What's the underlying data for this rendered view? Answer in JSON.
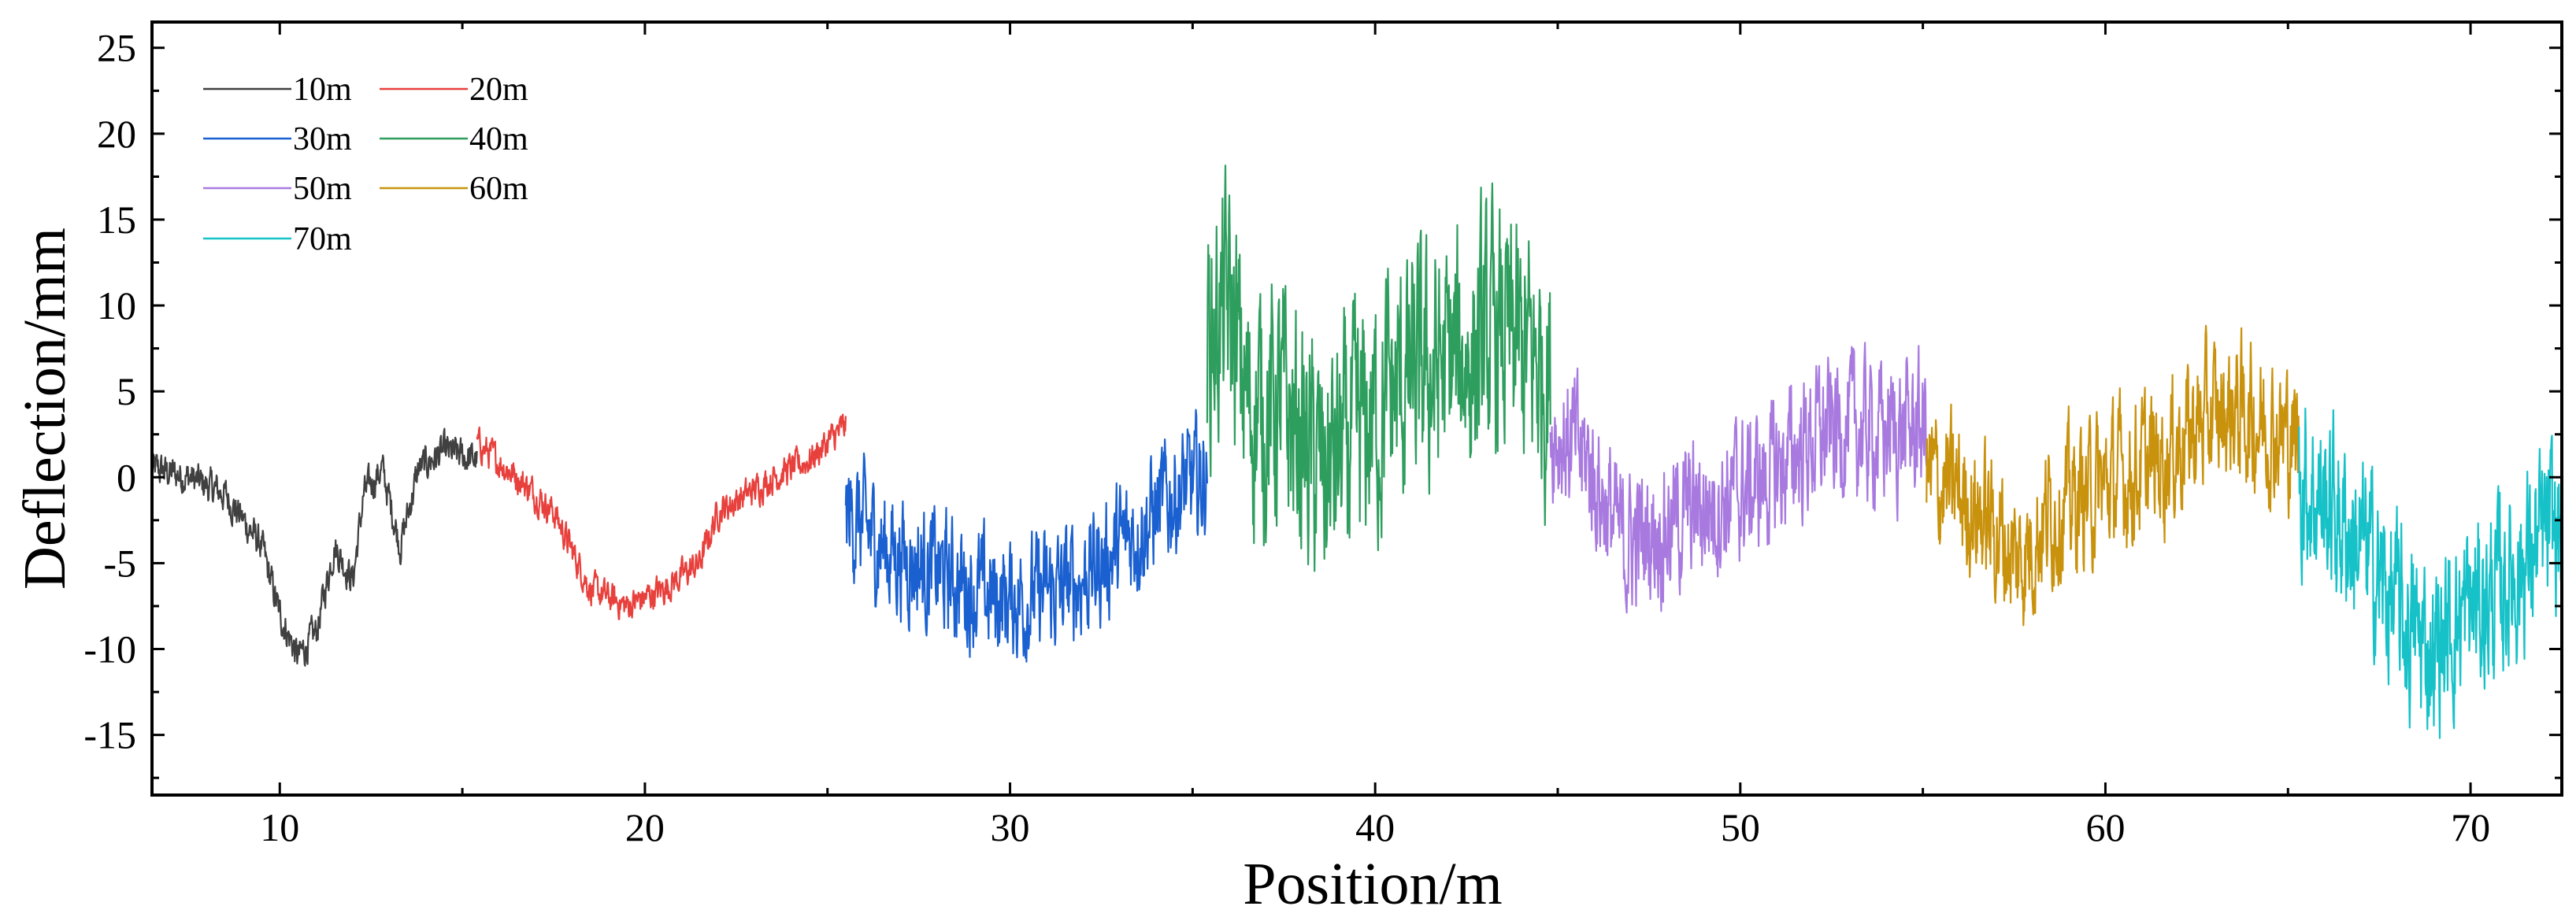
{
  "chart_data": {
    "type": "line",
    "xlabel": "Position/m",
    "ylabel": "Deflection/mm",
    "xlim": [
      6.5,
      72.5
    ],
    "ylim": [
      -18.5,
      26.5
    ],
    "x_ticks_major": [
      10,
      20,
      30,
      40,
      50,
      60,
      70
    ],
    "y_ticks_major": [
      -15,
      -10,
      -5,
      0,
      5,
      10,
      15,
      20,
      25
    ],
    "y_tick_labels": [
      "-15",
      "-10",
      "-5",
      "0",
      "5",
      "10",
      "15",
      "20",
      "25"
    ],
    "x_tick_labels": [
      "10",
      "20",
      "30",
      "40",
      "50",
      "60",
      "70"
    ],
    "grid": false,
    "legend_position": "top-left",
    "series": [
      {
        "name": "10m",
        "color": "#404040",
        "x_range": [
          6.5,
          15.4
        ],
        "noise": 1.0,
        "trend": [
          [
            6.5,
            0.5
          ],
          [
            7.5,
            0
          ],
          [
            8.5,
            -1
          ],
          [
            9.5,
            -4
          ],
          [
            10.0,
            -8
          ],
          [
            10.5,
            -10.5
          ],
          [
            11.0,
            -9
          ],
          [
            11.5,
            -4
          ],
          [
            12.0,
            -6
          ],
          [
            12.3,
            -1
          ],
          [
            12.8,
            0.5
          ],
          [
            13.3,
            -4
          ],
          [
            13.8,
            0.5
          ],
          [
            14.5,
            1.5
          ],
          [
            15.4,
            1
          ]
        ]
      },
      {
        "name": "20m",
        "color": "#e8403c",
        "x_range": [
          15.4,
          25.5
        ],
        "noise": 0.9,
        "trend": [
          [
            15.4,
            2
          ],
          [
            16.5,
            0
          ],
          [
            17.5,
            -2
          ],
          [
            18.5,
            -6.5
          ],
          [
            19.5,
            -7.5
          ],
          [
            20.5,
            -6.5
          ],
          [
            21.5,
            -5
          ],
          [
            22.0,
            -2
          ],
          [
            22.8,
            -1
          ],
          [
            23.5,
            0
          ],
          [
            24.5,
            1
          ],
          [
            25.5,
            3
          ]
        ]
      },
      {
        "name": "30m",
        "color": "#1a60d0",
        "x_range": [
          25.5,
          35.4
        ],
        "noise": 3.4,
        "trend": [
          [
            25.5,
            -2
          ],
          [
            26.5,
            -4
          ],
          [
            27.5,
            -5
          ],
          [
            28.5,
            -6
          ],
          [
            29.5,
            -7
          ],
          [
            30.5,
            -7
          ],
          [
            31.5,
            -6.5
          ],
          [
            32.5,
            -5
          ],
          [
            33.5,
            -3
          ],
          [
            34.5,
            -1
          ],
          [
            35.4,
            0
          ]
        ]
      },
      {
        "name": "40m",
        "color": "#2e9e5e",
        "x_range": [
          35.4,
          44.8
        ],
        "noise": 7.0,
        "trend": [
          [
            35.4,
            8
          ],
          [
            36.0,
            10
          ],
          [
            36.5,
            4
          ],
          [
            37.5,
            4
          ],
          [
            38.5,
            0
          ],
          [
            39.5,
            2
          ],
          [
            40.5,
            5
          ],
          [
            41.5,
            6
          ],
          [
            42.5,
            7
          ],
          [
            43.5,
            8
          ],
          [
            44.8,
            6
          ]
        ]
      },
      {
        "name": "50m",
        "color": "#a87ae0",
        "x_range": [
          44.8,
          55.1
        ],
        "noise": 4.0,
        "trend": [
          [
            44.8,
            3
          ],
          [
            45.8,
            1
          ],
          [
            46.8,
            -4
          ],
          [
            47.8,
            -3
          ],
          [
            48.8,
            -2
          ],
          [
            49.8,
            -1
          ],
          [
            50.8,
            0
          ],
          [
            51.8,
            2
          ],
          [
            52.8,
            3
          ],
          [
            53.8,
            2.5
          ],
          [
            55.1,
            3
          ]
        ]
      },
      {
        "name": "60m",
        "color": "#c9920c",
        "x_range": [
          55.1,
          65.3
        ],
        "noise": 4.0,
        "trend": [
          [
            55.1,
            0
          ],
          [
            56.0,
            -1
          ],
          [
            57.0,
            -3
          ],
          [
            57.6,
            -5
          ],
          [
            58.5,
            -2
          ],
          [
            59.5,
            -1
          ],
          [
            60.5,
            0
          ],
          [
            61.5,
            1
          ],
          [
            62.5,
            3
          ],
          [
            63.5,
            4
          ],
          [
            64.5,
            3
          ],
          [
            65.3,
            2
          ]
        ]
      },
      {
        "name": "70m",
        "color": "#16c2c8",
        "x_range": [
          65.3,
          72.5
        ],
        "noise": 5.0,
        "trend": [
          [
            65.3,
            0
          ],
          [
            66.3,
            -2
          ],
          [
            67.3,
            -5
          ],
          [
            68.3,
            -9
          ],
          [
            69.0,
            -10
          ],
          [
            69.8,
            -8
          ],
          [
            70.6,
            -7
          ],
          [
            71.4,
            -5
          ],
          [
            72.5,
            -3
          ]
        ]
      }
    ]
  }
}
